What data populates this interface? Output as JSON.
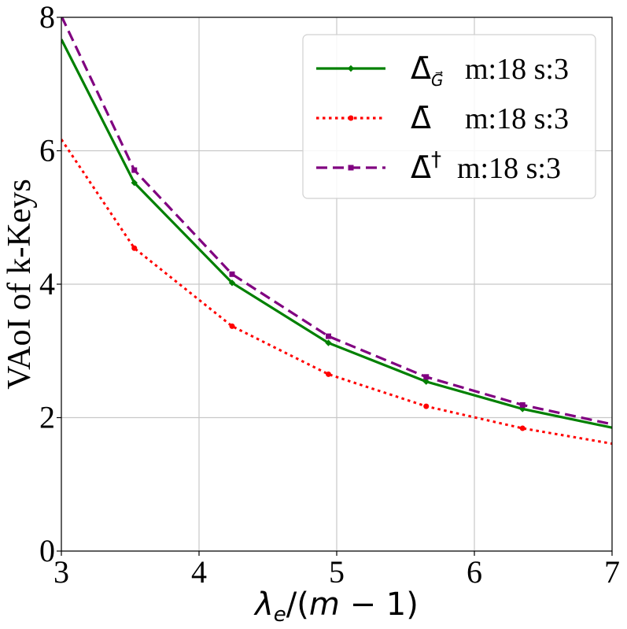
{
  "chart_data": {
    "type": "line",
    "title": "",
    "xlabel": "λe/(m − 1)",
    "ylabel": "VAoI of k-Keys",
    "xlim": [
      3,
      7
    ],
    "ylim": [
      0,
      8
    ],
    "xticks": [
      "3",
      "4",
      "5",
      "6",
      "7"
    ],
    "yticks": [
      "0",
      "2",
      "4",
      "6",
      "8"
    ],
    "grid": true,
    "legend_position": "top-right",
    "x": [
      3.0,
      3.53,
      4.24,
      4.94,
      5.65,
      6.35,
      7.0
    ],
    "series": [
      {
        "name": "Δ̄G⃗ m:18 s:3",
        "legend_symbol": "Δ̄",
        "legend_sub": "G⃗",
        "legend_rest": "m:18 s:3",
        "color": "#008000",
        "style": "solid",
        "marker": "diamond",
        "values": [
          7.67,
          5.52,
          4.02,
          3.12,
          2.54,
          2.13,
          1.85
        ]
      },
      {
        "name": "Δ̄ m:18 s:3",
        "legend_symbol": "Δ̄",
        "legend_sub": "",
        "legend_rest": "m:18 s:3",
        "color": "#ff0000",
        "style": "dotted",
        "marker": "circle",
        "values": [
          6.17,
          4.54,
          3.37,
          2.65,
          2.17,
          1.84,
          1.61
        ]
      },
      {
        "name": "Δ̄† m:18 s:3",
        "legend_symbol": "Δ̄",
        "legend_sub": "†",
        "legend_rest": "m:18 s:3",
        "color": "#800080",
        "style": "dashed",
        "marker": "square",
        "values": [
          8.02,
          5.71,
          4.15,
          3.22,
          2.61,
          2.19,
          1.9
        ]
      }
    ]
  }
}
